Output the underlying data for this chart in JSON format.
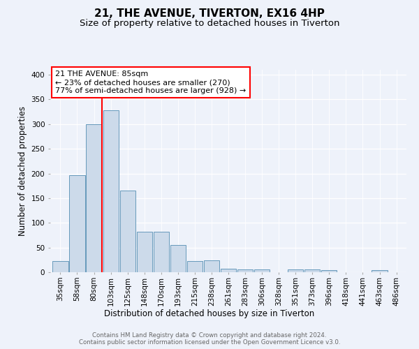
{
  "title": "21, THE AVENUE, TIVERTON, EX16 4HP",
  "subtitle": "Size of property relative to detached houses in Tiverton",
  "xlabel": "Distribution of detached houses by size in Tiverton",
  "ylabel": "Number of detached properties",
  "footer_line1": "Contains HM Land Registry data © Crown copyright and database right 2024.",
  "footer_line2": "Contains public sector information licensed under the Open Government Licence v3.0.",
  "bin_labels": [
    "35sqm",
    "58sqm",
    "80sqm",
    "103sqm",
    "125sqm",
    "148sqm",
    "170sqm",
    "193sqm",
    "215sqm",
    "238sqm",
    "261sqm",
    "283sqm",
    "306sqm",
    "328sqm",
    "351sqm",
    "373sqm",
    "396sqm",
    "418sqm",
    "441sqm",
    "463sqm",
    "486sqm"
  ],
  "bar_values": [
    22,
    197,
    300,
    328,
    165,
    82,
    82,
    55,
    22,
    24,
    7,
    6,
    6,
    0,
    5,
    5,
    4,
    0,
    0,
    4,
    0
  ],
  "bar_color": "#ccdaea",
  "bar_edge_color": "#6699bb",
  "red_line_x": 2.48,
  "annotation_text": "21 THE AVENUE: 85sqm\n← 23% of detached houses are smaller (270)\n77% of semi-detached houses are larger (928) →",
  "annotation_box_facecolor": "white",
  "annotation_box_edgecolor": "red",
  "red_line_color": "red",
  "ylim": [
    0,
    410
  ],
  "yticks": [
    0,
    50,
    100,
    150,
    200,
    250,
    300,
    350,
    400
  ],
  "bg_color": "#eef2fa",
  "grid_color": "white",
  "title_fontsize": 11,
  "subtitle_fontsize": 9.5,
  "axis_label_fontsize": 8.5,
  "tick_fontsize": 7.5,
  "annotation_fontsize": 8,
  "footer_fontsize": 6.2,
  "footer_color": "#666666"
}
